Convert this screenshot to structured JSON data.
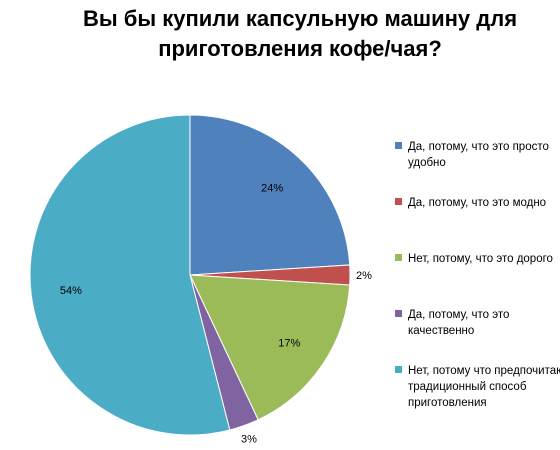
{
  "chart_data": {
    "type": "pie",
    "title_lines": [
      "Вы бы купили капсульную машину для",
      "приготовления кофе/чая?"
    ],
    "slices": [
      {
        "label": "Да, потому, что это просто удобно",
        "value": 24,
        "value_label": "24%",
        "color": "#4f81bd"
      },
      {
        "label": "Да, потому, что это модно",
        "value": 2,
        "value_label": "2%",
        "color": "#c0504d"
      },
      {
        "label": "Нет, потому, что это дорого",
        "value": 17,
        "value_label": "17%",
        "color": "#9bbb59"
      },
      {
        "label": "Да, потому, что это качественно",
        "value": 3,
        "value_label": "3%",
        "color": "#8064a2"
      },
      {
        "label": "Нет, потому что предпочитаю традиционный способ приготовления",
        "value": 54,
        "value_label": "54%",
        "color": "#4bacc6"
      }
    ],
    "legend_position": "right"
  }
}
